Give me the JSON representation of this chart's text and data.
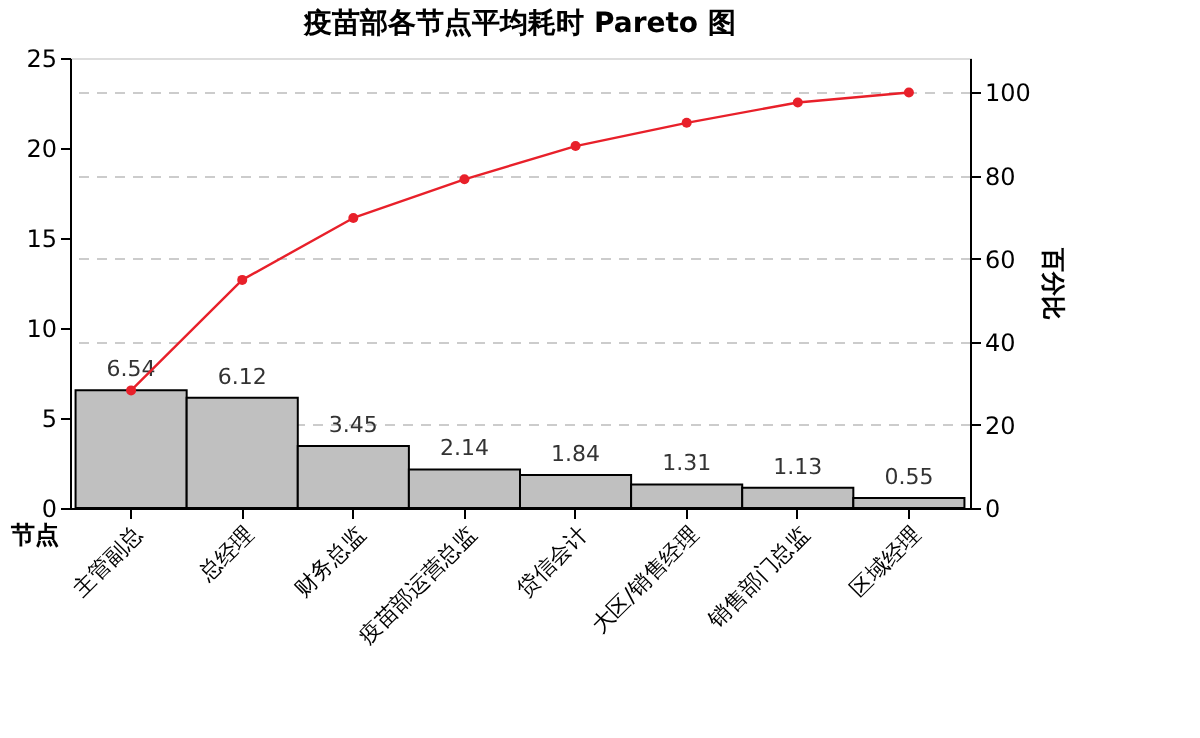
{
  "chart_data": {
    "type": "bar",
    "title": "疫苗部各节点平均耗时 Pareto 图",
    "xlabel": "节点",
    "y2label": "百分比",
    "categories": [
      "主管副总",
      "总经理",
      "财务总监",
      "疫苗部运营总监",
      "贷信会计",
      "大区/销售经理",
      "销售部门总监",
      "区域经理"
    ],
    "series": [
      {
        "color": "#c0c0c0",
        "values": [
          6.54,
          6.12,
          3.45,
          2.14,
          1.84,
          1.31,
          1.13,
          0.55
        ],
        "value_labels": [
          "6.54",
          "6.12",
          "3.45",
          "2.14",
          "1.84",
          "1.31",
          "1.13",
          "0.55"
        ]
      },
      {
        "type": "line",
        "axis": "y2",
        "color": "#e8202a",
        "marker": "circle",
        "values": [
          28.3,
          54.9,
          69.8,
          79.1,
          87.1,
          92.7,
          97.6,
          100
        ]
      }
    ],
    "ylim": [
      0,
      25
    ],
    "yticks": [
      0,
      5,
      10,
      15,
      20,
      25
    ],
    "y2lim": [
      0,
      108.3
    ],
    "y2ticks": [
      0,
      20,
      40,
      60,
      80,
      100
    ],
    "grid": "y2"
  }
}
